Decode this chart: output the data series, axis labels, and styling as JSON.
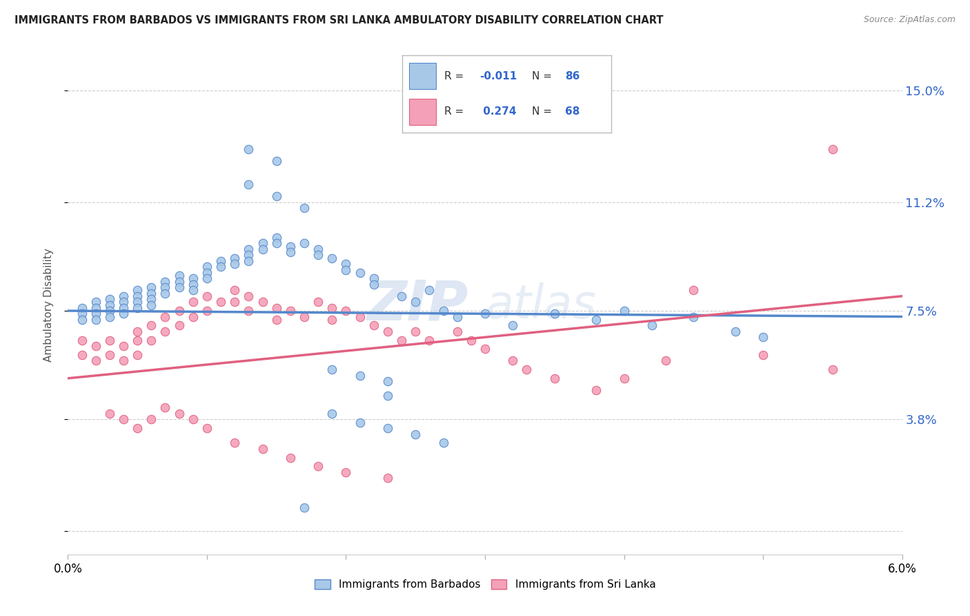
{
  "title": "IMMIGRANTS FROM BARBADOS VS IMMIGRANTS FROM SRI LANKA AMBULATORY DISABILITY CORRELATION CHART",
  "source": "Source: ZipAtlas.com",
  "ylabel": "Ambulatory Disability",
  "yticks": [
    0.0,
    0.038,
    0.075,
    0.112,
    0.15
  ],
  "ytick_labels": [
    "",
    "3.8%",
    "7.5%",
    "11.2%",
    "15.0%"
  ],
  "xmin": 0.0,
  "xmax": 0.06,
  "ymin": -0.008,
  "ymax": 0.162,
  "color_barbados": "#a8c8e8",
  "color_srilanka": "#f4a0b8",
  "color_barbados_line": "#5588cc",
  "color_srilanka_line": "#e06080",
  "watermark_zip": "ZIP",
  "watermark_atlas": "atlas",
  "barbados_x": [
    0.001,
    0.001,
    0.001,
    0.002,
    0.002,
    0.002,
    0.002,
    0.003,
    0.003,
    0.003,
    0.003,
    0.004,
    0.004,
    0.004,
    0.004,
    0.005,
    0.005,
    0.005,
    0.005,
    0.006,
    0.006,
    0.006,
    0.006,
    0.007,
    0.007,
    0.007,
    0.008,
    0.008,
    0.008,
    0.009,
    0.009,
    0.009,
    0.01,
    0.01,
    0.01,
    0.011,
    0.011,
    0.012,
    0.012,
    0.013,
    0.013,
    0.013,
    0.014,
    0.014,
    0.015,
    0.015,
    0.016,
    0.016,
    0.017,
    0.018,
    0.018,
    0.019,
    0.02,
    0.02,
    0.021,
    0.022,
    0.022,
    0.024,
    0.025,
    0.026,
    0.027,
    0.028,
    0.03,
    0.032,
    0.035,
    0.038,
    0.04,
    0.042,
    0.045,
    0.048,
    0.05,
    0.013,
    0.015,
    0.017,
    0.019,
    0.021,
    0.023,
    0.013,
    0.015,
    0.023,
    0.017,
    0.019,
    0.021,
    0.023,
    0.025,
    0.027
  ],
  "barbados_y": [
    0.076,
    0.074,
    0.072,
    0.078,
    0.076,
    0.074,
    0.072,
    0.079,
    0.077,
    0.075,
    0.073,
    0.08,
    0.078,
    0.076,
    0.074,
    0.082,
    0.08,
    0.078,
    0.076,
    0.083,
    0.081,
    0.079,
    0.077,
    0.085,
    0.083,
    0.081,
    0.087,
    0.085,
    0.083,
    0.086,
    0.084,
    0.082,
    0.09,
    0.088,
    0.086,
    0.092,
    0.09,
    0.093,
    0.091,
    0.096,
    0.094,
    0.092,
    0.098,
    0.096,
    0.1,
    0.098,
    0.097,
    0.095,
    0.098,
    0.096,
    0.094,
    0.093,
    0.091,
    0.089,
    0.088,
    0.086,
    0.084,
    0.08,
    0.078,
    0.082,
    0.075,
    0.073,
    0.074,
    0.07,
    0.074,
    0.072,
    0.075,
    0.07,
    0.073,
    0.068,
    0.066,
    0.118,
    0.114,
    0.11,
    0.055,
    0.053,
    0.051,
    0.13,
    0.126,
    0.046,
    0.008,
    0.04,
    0.037,
    0.035,
    0.033,
    0.03
  ],
  "srilanka_x": [
    0.001,
    0.001,
    0.002,
    0.002,
    0.003,
    0.003,
    0.004,
    0.004,
    0.005,
    0.005,
    0.005,
    0.006,
    0.006,
    0.007,
    0.007,
    0.008,
    0.008,
    0.009,
    0.009,
    0.01,
    0.01,
    0.011,
    0.012,
    0.012,
    0.013,
    0.013,
    0.014,
    0.015,
    0.015,
    0.016,
    0.017,
    0.018,
    0.019,
    0.019,
    0.02,
    0.021,
    0.022,
    0.023,
    0.024,
    0.025,
    0.026,
    0.028,
    0.029,
    0.03,
    0.032,
    0.033,
    0.035,
    0.038,
    0.04,
    0.043,
    0.045,
    0.05,
    0.055,
    0.003,
    0.004,
    0.005,
    0.006,
    0.007,
    0.008,
    0.009,
    0.01,
    0.012,
    0.014,
    0.016,
    0.018,
    0.02,
    0.023,
    0.055
  ],
  "srilanka_y": [
    0.065,
    0.06,
    0.063,
    0.058,
    0.065,
    0.06,
    0.063,
    0.058,
    0.068,
    0.065,
    0.06,
    0.07,
    0.065,
    0.073,
    0.068,
    0.075,
    0.07,
    0.078,
    0.073,
    0.08,
    0.075,
    0.078,
    0.082,
    0.078,
    0.08,
    0.075,
    0.078,
    0.076,
    0.072,
    0.075,
    0.073,
    0.078,
    0.076,
    0.072,
    0.075,
    0.073,
    0.07,
    0.068,
    0.065,
    0.068,
    0.065,
    0.068,
    0.065,
    0.062,
    0.058,
    0.055,
    0.052,
    0.048,
    0.052,
    0.058,
    0.082,
    0.06,
    0.055,
    0.04,
    0.038,
    0.035,
    0.038,
    0.042,
    0.04,
    0.038,
    0.035,
    0.03,
    0.028,
    0.025,
    0.022,
    0.02,
    0.018,
    0.13
  ],
  "barbados_trend_x": [
    0.0,
    0.06
  ],
  "barbados_trend_y": [
    0.075,
    0.073
  ],
  "srilanka_trend_x": [
    0.0,
    0.06
  ],
  "srilanka_trend_y": [
    0.052,
    0.08
  ]
}
